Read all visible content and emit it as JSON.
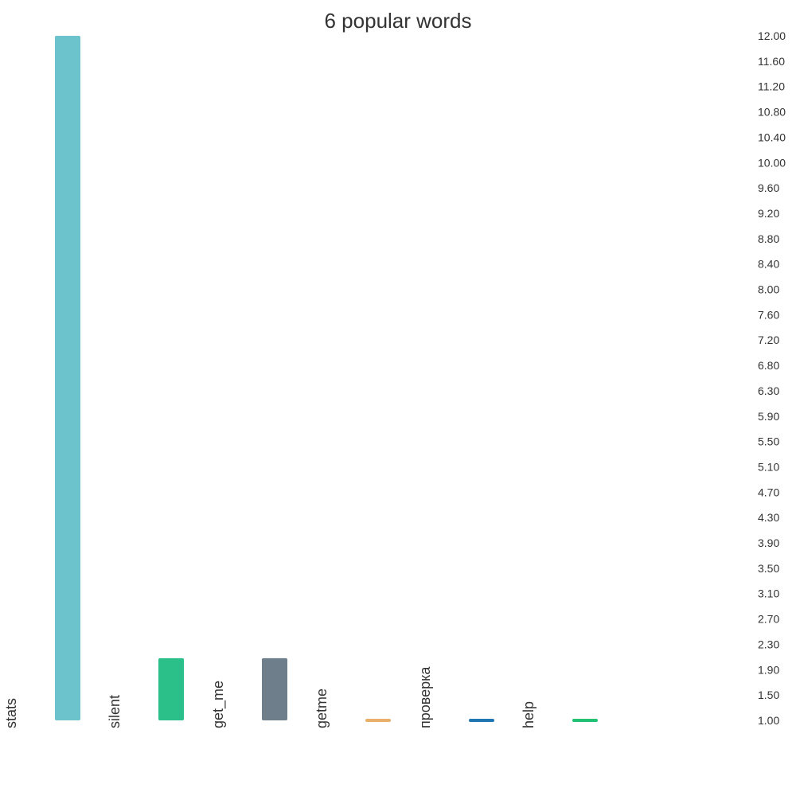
{
  "chart_data": {
    "type": "bar",
    "title": "6 popular words",
    "categories": [
      "stats",
      "silent",
      "get_me",
      "getme",
      "проверка",
      "help"
    ],
    "values": [
      12,
      2,
      2,
      1,
      1,
      1
    ],
    "colors": [
      "#6cc3cc",
      "#2bbf8a",
      "#6e7f8b",
      "#e9b06a",
      "#1f77b4",
      "#22c272"
    ],
    "ylim": [
      1,
      12
    ],
    "yticks": [
      "12.00",
      "11.60",
      "11.20",
      "10.80",
      "10.40",
      "10.00",
      "9.60",
      "9.20",
      "8.80",
      "8.40",
      "8.00",
      "7.60",
      "7.20",
      "6.80",
      "6.30",
      "5.90",
      "5.50",
      "5.10",
      "4.70",
      "4.30",
      "3.90",
      "3.50",
      "3.10",
      "2.70",
      "2.30",
      "1.90",
      "1.50",
      "1.00"
    ],
    "xlabel": "",
    "ylabel": "",
    "legend": "none",
    "grid": false,
    "y_axis_side": "right"
  }
}
